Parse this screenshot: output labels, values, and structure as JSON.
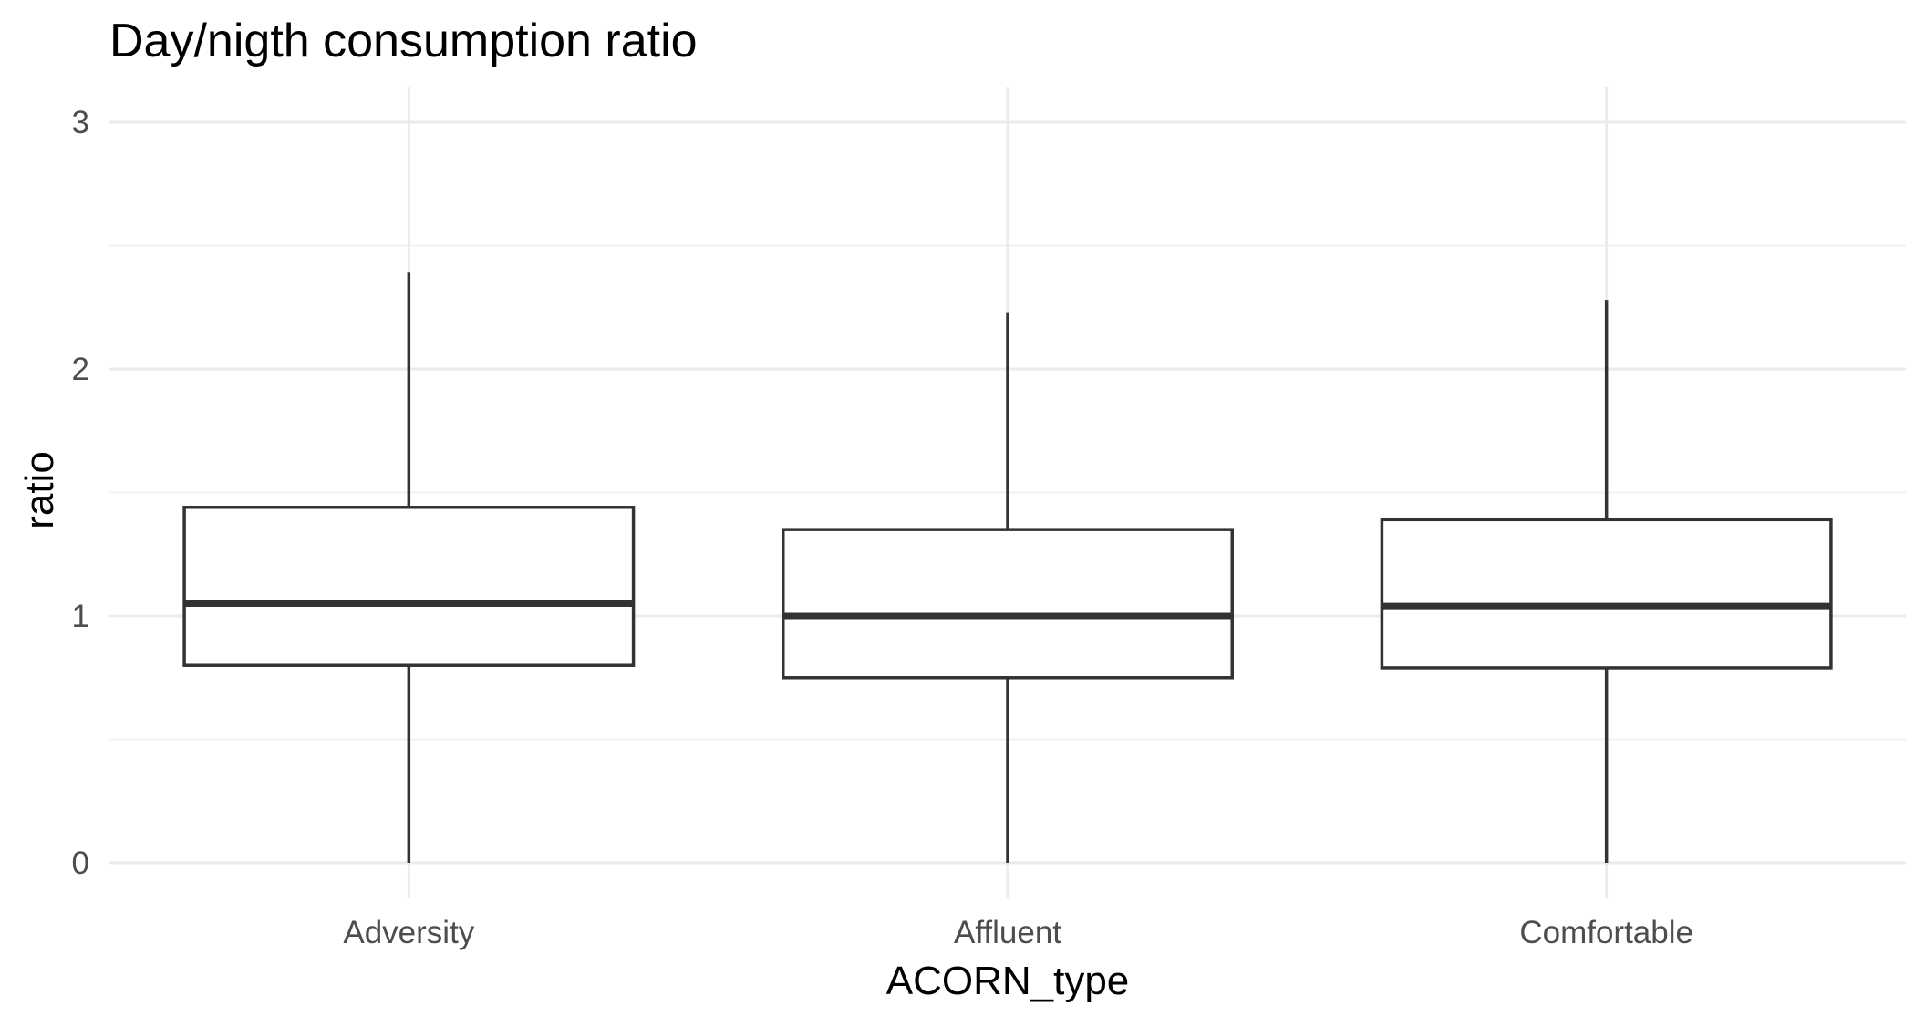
{
  "chart_data": {
    "type": "boxplot",
    "title": "Day/nigth consumption ratio",
    "xlabel": "ACORN_type",
    "ylabel": "ratio",
    "ylim": [
      -0.14,
      3.14
    ],
    "yticks": [
      0,
      1,
      2,
      3
    ],
    "grid": true,
    "legend": "none",
    "categories": [
      "Adversity",
      "Affluent",
      "Comfortable"
    ],
    "boxes": [
      {
        "category": "Adversity",
        "min": 0.0,
        "q1": 0.8,
        "median": 1.05,
        "q3": 1.44,
        "max": 2.39
      },
      {
        "category": "Affluent",
        "min": 0.0,
        "q1": 0.75,
        "median": 1.0,
        "q3": 1.35,
        "max": 2.23
      },
      {
        "category": "Comfortable",
        "min": 0.0,
        "q1": 0.79,
        "median": 1.04,
        "q3": 1.39,
        "max": 2.28
      }
    ],
    "colors": {
      "box_stroke": "#333333",
      "box_fill": "#ffffff",
      "grid": "#ebebeb",
      "tick_text": "#4d4d4d",
      "title_text": "#000000"
    }
  }
}
